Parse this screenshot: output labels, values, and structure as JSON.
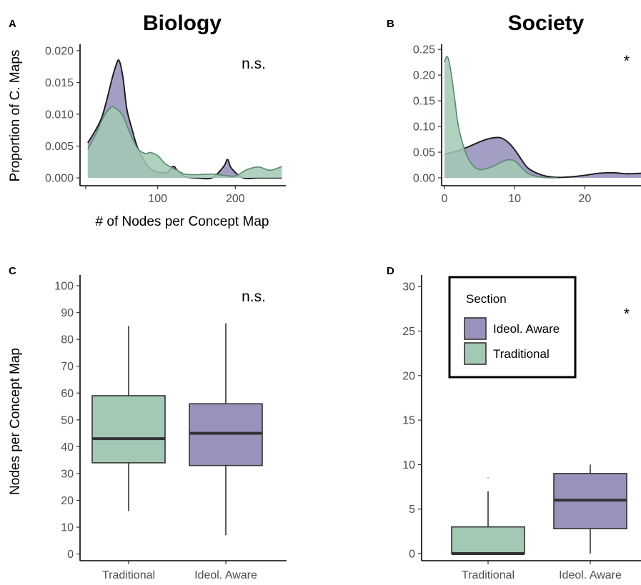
{
  "colors": {
    "purple": "#9993BC",
    "green": "#A3C9B4",
    "line": "#1a1a1a",
    "median": "#333333"
  },
  "chart_data": [
    {
      "panel": "A",
      "title": "Biology",
      "type": "area",
      "xlabel": "# of Nodes per Concept Map",
      "ylabel": "Proportion of C. Maps",
      "xlim": [
        0,
        265
      ],
      "ylim": [
        0,
        0.021
      ],
      "xticks": [
        "100",
        "200"
      ],
      "xtick_values": [
        100,
        200
      ],
      "xticks_all": [
        0,
        100,
        200
      ],
      "yticks": [
        "0.000",
        "0.005",
        "0.010",
        "0.015",
        "0.020"
      ],
      "ytick_values": [
        0,
        0.005,
        0.01,
        0.015,
        0.02
      ],
      "annotation": "n.s.",
      "series": [
        {
          "group": "Ideol. Aware",
          "color": "purple",
          "x": [
            10,
            20,
            28,
            35,
            40,
            45,
            50,
            55,
            60,
            65,
            75,
            90,
            110,
            120,
            125,
            135,
            150,
            170,
            185,
            190,
            195,
            210,
            230,
            250,
            260
          ],
          "y": [
            0.0055,
            0.0075,
            0.0095,
            0.0125,
            0.015,
            0.0172,
            0.0185,
            0.016,
            0.011,
            0.0085,
            0.0045,
            0.0015,
            0.0008,
            0.0018,
            0.0012,
            0.0002,
            0.0,
            0.0,
            0.0018,
            0.0029,
            0.0015,
            0.0,
            0.0,
            0.0,
            0.0
          ]
        },
        {
          "group": "Traditional",
          "color": "green",
          "x": [
            10,
            20,
            30,
            40,
            45,
            55,
            65,
            75,
            85,
            90,
            100,
            110,
            125,
            135,
            150,
            170,
            185,
            200,
            215,
            230,
            245,
            260
          ],
          "y": [
            0.0045,
            0.0068,
            0.0095,
            0.0111,
            0.011,
            0.0098,
            0.0068,
            0.0045,
            0.0038,
            0.004,
            0.0035,
            0.0022,
            0.0012,
            0.0006,
            0.0005,
            0.0006,
            0.0004,
            0.0003,
            0.0013,
            0.0017,
            0.0012,
            0.0018
          ]
        }
      ]
    },
    {
      "panel": "B",
      "title": "Society",
      "type": "area",
      "xlim": [
        -0.4,
        28
      ],
      "ylim": [
        0,
        0.26
      ],
      "xticks": [
        "0",
        "10",
        "20"
      ],
      "xtick_values": [
        0,
        10,
        20
      ],
      "yticks": [
        "0.00",
        "0.05",
        "0.10",
        "0.15",
        "0.20",
        "0.25"
      ],
      "ytick_values": [
        0,
        0.05,
        0.1,
        0.15,
        0.2,
        0.25
      ],
      "annotation": "*",
      "series": [
        {
          "group": "Ideol. Aware",
          "color": "purple",
          "x": [
            0,
            2,
            4,
            5,
            6,
            7,
            8,
            9,
            10,
            11,
            12,
            14,
            16,
            18,
            20,
            22,
            24,
            26,
            28
          ],
          "y": [
            0.046,
            0.053,
            0.064,
            0.07,
            0.075,
            0.078,
            0.078,
            0.07,
            0.055,
            0.035,
            0.018,
            0.005,
            0.001,
            0.002,
            0.005,
            0.009,
            0.01,
            0.008,
            0.009
          ]
        },
        {
          "group": "Traditional",
          "color": "green",
          "x": [
            0,
            0.3,
            0.6,
            1,
            1.5,
            2,
            3,
            4,
            5,
            6,
            7,
            8,
            9,
            10,
            11,
            12,
            14,
            16
          ],
          "y": [
            0.225,
            0.236,
            0.23,
            0.2,
            0.15,
            0.1,
            0.05,
            0.025,
            0.016,
            0.018,
            0.023,
            0.03,
            0.035,
            0.033,
            0.02,
            0.008,
            0.001,
            0.0
          ]
        }
      ]
    },
    {
      "panel": "C",
      "type": "box",
      "ylabel": "Nodes per Concept Map",
      "ylim": [
        -2.5,
        104
      ],
      "categories": [
        "Traditional",
        "Ideol. Aware"
      ],
      "yticks": [
        "0",
        "10",
        "20",
        "30",
        "40",
        "50",
        "60",
        "70",
        "80",
        "90",
        "100"
      ],
      "ytick_values": [
        0,
        10,
        20,
        30,
        40,
        50,
        60,
        70,
        80,
        90,
        100
      ],
      "annotation": "n.s.",
      "boxes": [
        {
          "group": "Traditional",
          "color": "green",
          "whisker_low": 16,
          "q1": 34,
          "median": 43,
          "q3": 59,
          "whisker_high": 85
        },
        {
          "group": "Ideol. Aware",
          "color": "purple",
          "whisker_low": 7,
          "q1": 33,
          "median": 45,
          "q3": 56,
          "whisker_high": 86
        }
      ]
    },
    {
      "panel": "D",
      "type": "box",
      "ylim": [
        -0.8,
        31.3
      ],
      "categories": [
        "Traditional",
        "Ideol. Aware"
      ],
      "yticks": [
        "0",
        "5",
        "10",
        "15",
        "20",
        "25",
        "30"
      ],
      "ytick_values": [
        0,
        5,
        10,
        15,
        20,
        25,
        30
      ],
      "annotation": "*",
      "legend": {
        "title": "Section",
        "items": [
          {
            "label": "Ideol. Aware",
            "color": "purple"
          },
          {
            "label": "Traditional",
            "color": "green"
          }
        ],
        "placement": "top-right"
      },
      "boxes": [
        {
          "group": "Traditional",
          "color": "green",
          "whisker_low": 0,
          "q1": 0,
          "median": 0,
          "q3": 3,
          "whisker_high": 7,
          "outliers": [
            8.5
          ]
        },
        {
          "group": "Ideol. Aware",
          "color": "purple",
          "whisker_low": 0,
          "q1": 2.8,
          "median": 6,
          "q3": 9,
          "whisker_high": 10
        }
      ]
    }
  ]
}
